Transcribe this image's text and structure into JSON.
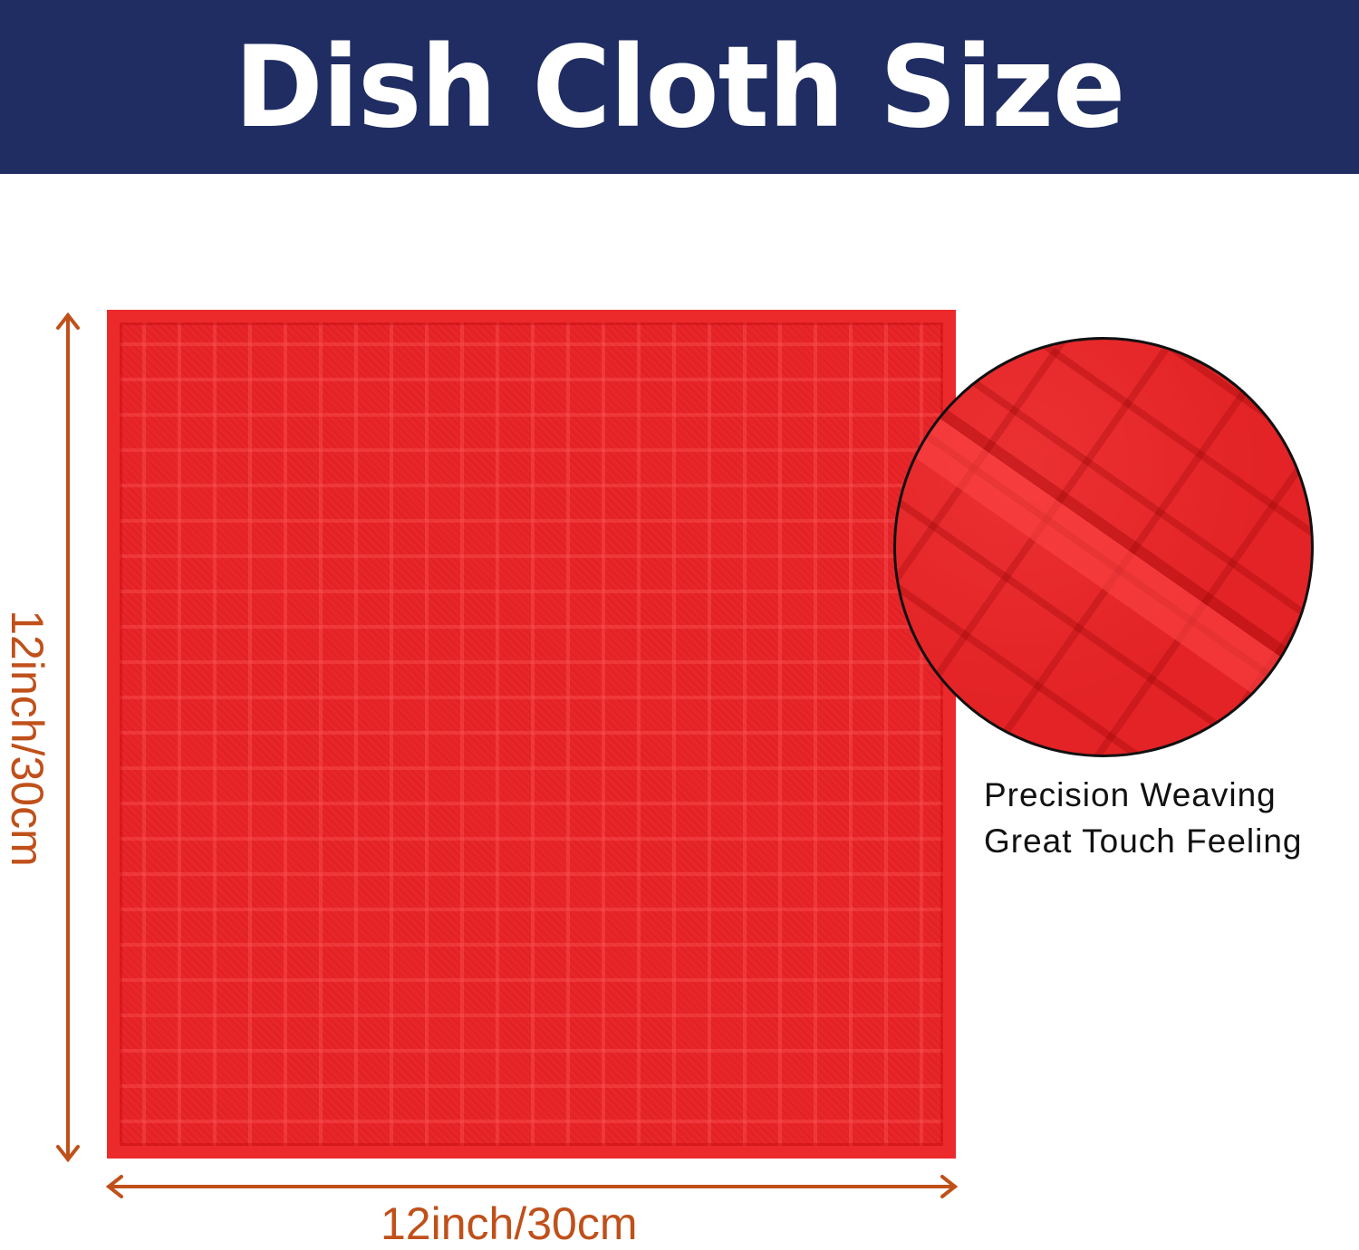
{
  "header": {
    "title": "Dish Cloth Size",
    "background": "#1f2d63"
  },
  "product": {
    "color": "#e8262a"
  },
  "dimensions": {
    "height_label": "12inch/30cm",
    "width_label": "12inch/30cm",
    "color": "#c0501a"
  },
  "detail": {
    "lines": [
      "Precision Weaving",
      "Great Touch Feeling"
    ]
  }
}
